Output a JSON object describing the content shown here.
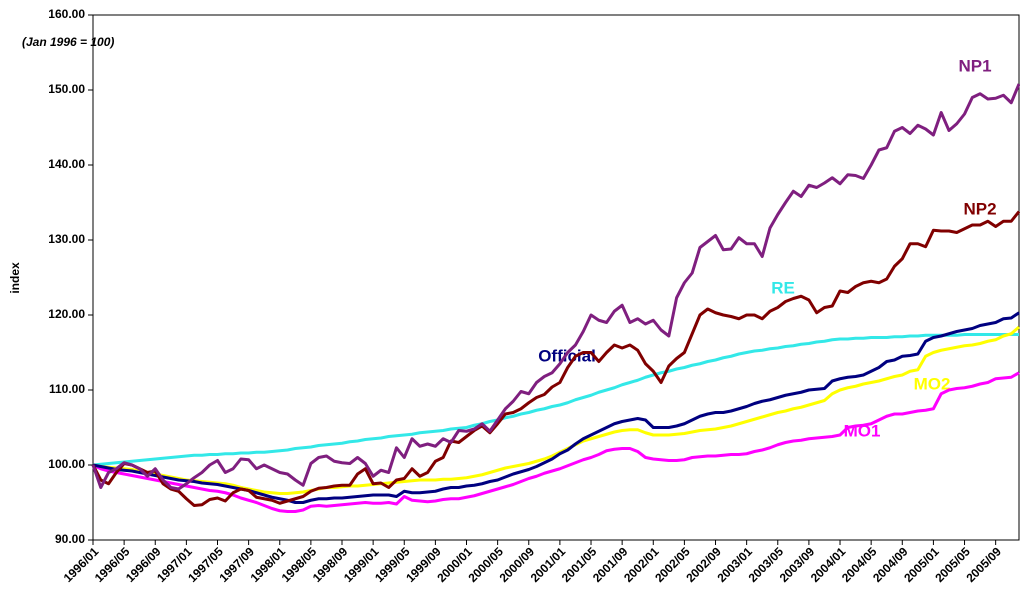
{
  "chart_data": {
    "type": "line",
    "subtitle": "(Jan 1996 = 100)",
    "ylabel": "index",
    "categories": [
      "1996/01",
      null,
      null,
      null,
      "1996/05",
      null,
      null,
      null,
      "1996/09",
      null,
      null,
      null,
      "1997/01",
      null,
      null,
      null,
      "1997/05",
      null,
      null,
      null,
      "1997/09",
      null,
      null,
      null,
      "1998/01",
      null,
      null,
      null,
      "1998/05",
      null,
      null,
      null,
      "1998/09",
      null,
      null,
      null,
      "1999/01",
      null,
      null,
      null,
      "1999/05",
      null,
      null,
      null,
      "1999/09",
      null,
      null,
      null,
      "2000/01",
      null,
      null,
      null,
      "2000/05",
      null,
      null,
      null,
      "2000/09",
      null,
      null,
      null,
      "2001/01",
      null,
      null,
      null,
      "2001/05",
      null,
      null,
      null,
      "2001/09",
      null,
      null,
      null,
      "2002/01",
      null,
      null,
      null,
      "2002/05",
      null,
      null,
      null,
      "2002/09",
      null,
      null,
      null,
      "2003/01",
      null,
      null,
      null,
      "2003/05",
      null,
      null,
      null,
      "2003/09",
      null,
      null,
      null,
      "2004/01",
      null,
      null,
      null,
      "2004/05",
      null,
      null,
      null,
      "2004/09",
      null,
      null,
      null,
      "2005/01",
      null,
      null,
      null,
      "2005/05",
      null,
      null,
      null,
      "2005/09",
      null,
      null,
      null
    ],
    "series": [
      {
        "name": "RE",
        "color": "#33e8e8",
        "values": [
          100,
          100.1,
          100.2,
          100.3,
          100.4,
          100.5,
          100.6,
          100.7,
          100.8,
          100.9,
          101,
          101.1,
          101.2,
          101.3,
          101.3,
          101.4,
          101.4,
          101.5,
          101.5,
          101.6,
          101.6,
          101.7,
          101.7,
          101.8,
          101.9,
          102,
          102.2,
          102.3,
          102.4,
          102.6,
          102.7,
          102.8,
          102.9,
          103.1,
          103.2,
          103.4,
          103.5,
          103.6,
          103.8,
          103.9,
          104,
          104.1,
          104.3,
          104.4,
          104.5,
          104.6,
          104.8,
          104.9,
          105,
          105.3,
          105.5,
          105.8,
          106,
          106.3,
          106.5,
          106.8,
          107,
          107.3,
          107.5,
          107.8,
          108,
          108.3,
          108.7,
          109,
          109.3,
          109.7,
          110,
          110.3,
          110.7,
          111,
          111.3,
          111.7,
          112,
          112.3,
          112.5,
          112.8,
          113,
          113.3,
          113.5,
          113.8,
          114,
          114.3,
          114.5,
          114.8,
          115,
          115.2,
          115.3,
          115.5,
          115.6,
          115.8,
          115.9,
          116.1,
          116.2,
          116.4,
          116.5,
          116.7,
          116.8,
          116.8,
          116.9,
          116.9,
          117,
          117,
          117,
          117.1,
          117.1,
          117.2,
          117.2,
          117.3,
          117.3,
          117.3,
          117.3,
          117.3,
          117.4,
          117.4,
          117.4,
          117.4,
          117.4,
          117.4,
          117.4,
          117.4
        ]
      },
      {
        "name": "MO2",
        "color": "#ffff00",
        "values": [
          100,
          99.8,
          99.7,
          99.6,
          99.5,
          99.4,
          99.2,
          99,
          98.8,
          98.6,
          98.4,
          98.2,
          98,
          97.9,
          97.8,
          97.7,
          97.6,
          97.5,
          97.3,
          97,
          96.8,
          96.6,
          96.4,
          96.3,
          96.2,
          96.2,
          96.3,
          96.4,
          96.6,
          96.8,
          97,
          97,
          97.1,
          97.2,
          97.2,
          97.3,
          97.4,
          97.5,
          97.6,
          97.7,
          97.8,
          97.9,
          98,
          98,
          98,
          98.1,
          98.1,
          98.2,
          98.3,
          98.5,
          98.7,
          99,
          99.3,
          99.6,
          99.8,
          100,
          100.2,
          100.5,
          100.8,
          101.2,
          101.7,
          102.2,
          102.7,
          103.2,
          103.5,
          103.8,
          104.1,
          104.4,
          104.6,
          104.7,
          104.7,
          104.3,
          104,
          104,
          104,
          104.1,
          104.2,
          104.4,
          104.6,
          104.7,
          104.8,
          105,
          105.2,
          105.5,
          105.8,
          106.1,
          106.4,
          106.7,
          107,
          107.2,
          107.5,
          107.7,
          108,
          108.3,
          108.6,
          109.5,
          110,
          110.3,
          110.5,
          110.8,
          111,
          111.2,
          111.5,
          111.8,
          112,
          112.5,
          112.7,
          114.5,
          115,
          115.3,
          115.5,
          115.7,
          115.9,
          116,
          116.2,
          116.5,
          116.7,
          117.2,
          117.5,
          118.4
        ]
      },
      {
        "name": "MO1",
        "color": "#ff00ff",
        "values": [
          100,
          99.5,
          99.2,
          99,
          98.8,
          98.6,
          98.4,
          98.2,
          98,
          97.8,
          97.6,
          97.4,
          97.2,
          97,
          96.8,
          96.6,
          96.5,
          96.3,
          96,
          95.6,
          95.3,
          95,
          94.6,
          94.2,
          93.9,
          93.8,
          93.8,
          94,
          94.5,
          94.6,
          94.5,
          94.6,
          94.7,
          94.8,
          94.9,
          95,
          94.9,
          94.9,
          95,
          94.8,
          95.8,
          95.3,
          95.2,
          95.1,
          95.2,
          95.4,
          95.5,
          95.5,
          95.7,
          95.9,
          96.2,
          96.5,
          96.8,
          97.1,
          97.4,
          97.8,
          98.2,
          98.5,
          98.9,
          99.2,
          99.5,
          99.9,
          100.3,
          100.7,
          101,
          101.4,
          101.9,
          102.1,
          102.2,
          102.2,
          101.8,
          101,
          100.8,
          100.7,
          100.6,
          100.6,
          100.7,
          101,
          101.1,
          101.2,
          101.2,
          101.3,
          101.4,
          101.4,
          101.5,
          101.8,
          102,
          102.3,
          102.7,
          103,
          103.2,
          103.3,
          103.5,
          103.6,
          103.7,
          103.8,
          104,
          105,
          105.2,
          105.3,
          105.5,
          106,
          106.5,
          106.8,
          106.8,
          107,
          107.2,
          107.3,
          107.5,
          109.5,
          110,
          110.2,
          110.3,
          110.5,
          110.8,
          111,
          111.5,
          111.6,
          111.7,
          112.3
        ]
      },
      {
        "name": "Official",
        "color": "#000080",
        "values": [
          100,
          99.8,
          99.6,
          99.4,
          99.3,
          99.2,
          99,
          98.8,
          98.6,
          98.4,
          98.2,
          98,
          97.9,
          97.8,
          97.6,
          97.5,
          97.4,
          97.2,
          97,
          96.8,
          96.6,
          96.3,
          96,
          95.7,
          95.5,
          95.3,
          95,
          95,
          95.3,
          95.5,
          95.5,
          95.6,
          95.6,
          95.7,
          95.8,
          95.9,
          96,
          96,
          96,
          95.8,
          96.5,
          96.3,
          96.3,
          96.4,
          96.5,
          96.8,
          97,
          97,
          97.2,
          97.3,
          97.5,
          97.8,
          98,
          98.4,
          98.8,
          99.1,
          99.4,
          99.8,
          100.3,
          100.8,
          101.5,
          102,
          102.8,
          103.5,
          104,
          104.5,
          105,
          105.5,
          105.8,
          106,
          106.2,
          106,
          105,
          105,
          105,
          105.2,
          105.5,
          106,
          106.5,
          106.8,
          107,
          107,
          107.2,
          107.5,
          107.8,
          108.2,
          108.5,
          108.7,
          109,
          109.3,
          109.5,
          109.7,
          110,
          110.1,
          110.2,
          111.2,
          111.5,
          111.7,
          111.8,
          112,
          112.5,
          113,
          113.8,
          114,
          114.5,
          114.6,
          114.8,
          116.5,
          117,
          117.2,
          117.5,
          117.8,
          118,
          118.2,
          118.6,
          118.8,
          119,
          119.5,
          119.6,
          120.3
        ]
      },
      {
        "name": "NP2",
        "color": "#800000",
        "values": [
          100,
          98,
          97.5,
          99,
          100.2,
          100,
          99.5,
          99,
          99.2,
          97.5,
          96.8,
          96.5,
          95.5,
          94.6,
          94.7,
          95.4,
          95.6,
          95.2,
          96.3,
          96.8,
          96.6,
          95.7,
          95.5,
          95.3,
          94.9,
          95.2,
          95.5,
          95.8,
          96.5,
          96.9,
          97,
          97.2,
          97.3,
          97.3,
          98.8,
          99.5,
          97.5,
          97.6,
          97,
          98,
          98.2,
          99.5,
          98.5,
          99,
          100.5,
          101,
          103.2,
          103,
          103.8,
          104.6,
          105.2,
          104.3,
          105.5,
          106.8,
          107,
          107.5,
          108.3,
          109,
          109.4,
          110.4,
          111,
          113,
          114.5,
          115,
          115,
          113.8,
          115,
          116,
          115.6,
          116,
          115.3,
          113.5,
          112.5,
          111,
          113.2,
          114.2,
          115,
          117.5,
          120,
          120.8,
          120.3,
          120,
          119.8,
          119.5,
          120,
          120,
          119.5,
          120.5,
          121,
          121.8,
          122.2,
          122.5,
          122,
          120.3,
          121,
          121.2,
          123.2,
          123,
          123.8,
          124.3,
          124.5,
          124.3,
          124.8,
          126.5,
          127.5,
          129.5,
          129.5,
          129.1,
          131.3,
          131.2,
          131.2,
          131,
          131.5,
          132,
          132,
          132.5,
          131.8,
          132.5,
          132.5,
          133.8
        ]
      },
      {
        "name": "NP1",
        "color": "#7f1f7f",
        "values": [
          100,
          97,
          99,
          99.5,
          100.3,
          100,
          99.5,
          98.5,
          99.5,
          98,
          97,
          96.8,
          97.5,
          98.3,
          99,
          100,
          100.6,
          99,
          99.5,
          100.8,
          100.7,
          99.5,
          100,
          99.5,
          99,
          98.8,
          98,
          97.3,
          100.2,
          101,
          101.2,
          100.5,
          100.3,
          100.2,
          101,
          100.2,
          98.5,
          99.3,
          99,
          102.3,
          101,
          103.5,
          102.5,
          102.8,
          102.5,
          103.5,
          103,
          104.6,
          104.5,
          104.8,
          105.5,
          104.5,
          106,
          107.5,
          108.5,
          109.8,
          109.5,
          111,
          111.8,
          112.3,
          113.5,
          115,
          116,
          117.8,
          120,
          119.3,
          119,
          120.5,
          121.3,
          119,
          119.5,
          118.8,
          119.3,
          118,
          117.2,
          122.3,
          124.3,
          125.6,
          129,
          129.8,
          130.6,
          128.7,
          128.8,
          130.3,
          129.5,
          129.5,
          127.8,
          131.6,
          133.4,
          135,
          136.5,
          135.8,
          137.3,
          137,
          137.6,
          138.3,
          137.5,
          138.7,
          138.6,
          138.2,
          140,
          142,
          142.3,
          144.5,
          145,
          144.2,
          145.3,
          144.8,
          144,
          147,
          144.6,
          145.5,
          146.8,
          149,
          149.5,
          148.8,
          148.9,
          149.3,
          148.3,
          150.8
        ]
      }
    ],
    "ylim": [
      90,
      160
    ],
    "yticks": [
      {
        "value": 90,
        "label": "90.00"
      },
      {
        "value": 100,
        "label": "100.00"
      },
      {
        "value": 110,
        "label": "110.00"
      },
      {
        "value": 120,
        "label": "120.00"
      },
      {
        "value": 130,
        "label": "130.00"
      },
      {
        "value": 140,
        "label": "140.00"
      },
      {
        "value": 150,
        "label": "150.00"
      },
      {
        "value": 160,
        "label": "160.00"
      }
    ],
    "grid": false
  }
}
